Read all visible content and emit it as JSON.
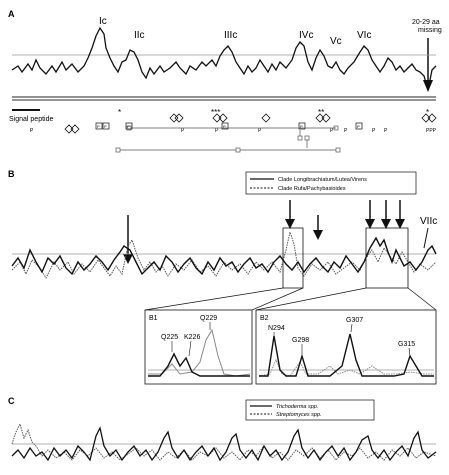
{
  "panels": {
    "A": {
      "label": "A",
      "peak_labels": [
        "Ic",
        "IIc",
        "IIIc",
        "IVc",
        "Vc",
        "VIc"
      ],
      "missing_note_line1": "20-29 aa",
      "missing_note_line2": "missing",
      "signal_peptide": "Signal peptide",
      "stars": [
        "*",
        "***",
        "**",
        "*"
      ],
      "p_marker": "P",
      "ppp_marker": "PPP"
    },
    "B": {
      "label": "B",
      "legend": [
        {
          "name": "Clade Longibrachiatum/Lutea/Virens",
          "style": "solid"
        },
        {
          "name": "Clade Rufa/Pachybasioides",
          "style": "dotted"
        }
      ],
      "peak_label": "VIIc",
      "inset_B1": {
        "label": "B1",
        "residues": [
          "Q225",
          "K226",
          "Q229"
        ]
      },
      "inset_B2": {
        "label": "B2",
        "residues": [
          "N294",
          "G298",
          "G307",
          "G315"
        ]
      }
    },
    "C": {
      "label": "C",
      "legend": [
        {
          "name": "Trichoderma spp.",
          "style": "solid"
        },
        {
          "name": "Streptomyces spp.",
          "style": "dotted"
        }
      ]
    }
  },
  "colors": {
    "line": "#111111",
    "grey_line": "#888888",
    "background": "#ffffff"
  }
}
